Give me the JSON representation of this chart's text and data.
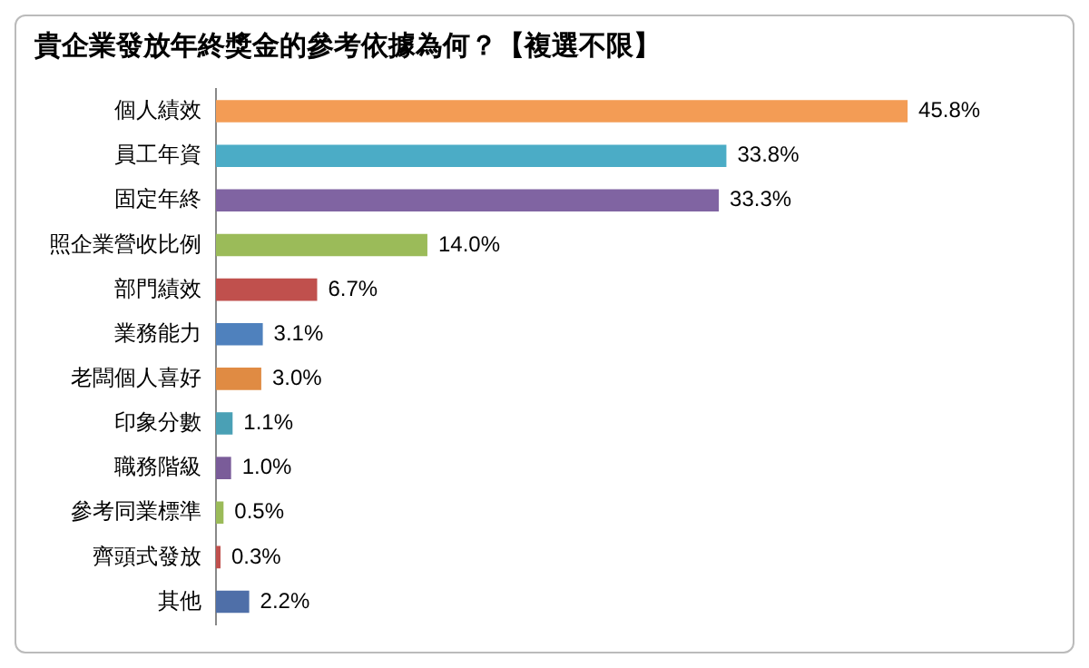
{
  "chart_data": {
    "type": "bar",
    "orientation": "horizontal",
    "title": "貴企業發放年終獎金的參考依據為何？【複選不限】",
    "categories": [
      "個人績效",
      "員工年資",
      "固定年終",
      "照企業營收比例",
      "部門績效",
      "業務能力",
      "老闆個人喜好",
      "印象分數",
      "職務階級",
      "參考同業標準",
      "齊頭式發放",
      "其他"
    ],
    "values": [
      45.8,
      33.8,
      33.3,
      14.0,
      6.7,
      3.1,
      3.0,
      1.1,
      1.0,
      0.5,
      0.3,
      2.2
    ],
    "colors": [
      "#f39c55",
      "#4bacc6",
      "#8064a2",
      "#9bbb59",
      "#c0504d",
      "#4f81bd",
      "#e08b43",
      "#4aa0b5",
      "#7a5c99",
      "#9bbb59",
      "#c0504d",
      "#4f6fa8"
    ],
    "value_labels": [
      "45.8%",
      "33.8%",
      "33.3%",
      "14.0%",
      "6.7%",
      "3.1%",
      "3.0%",
      "1.1%",
      "1.0%",
      "0.5%",
      "0.3%",
      "2.2%"
    ],
    "legend": false
  }
}
